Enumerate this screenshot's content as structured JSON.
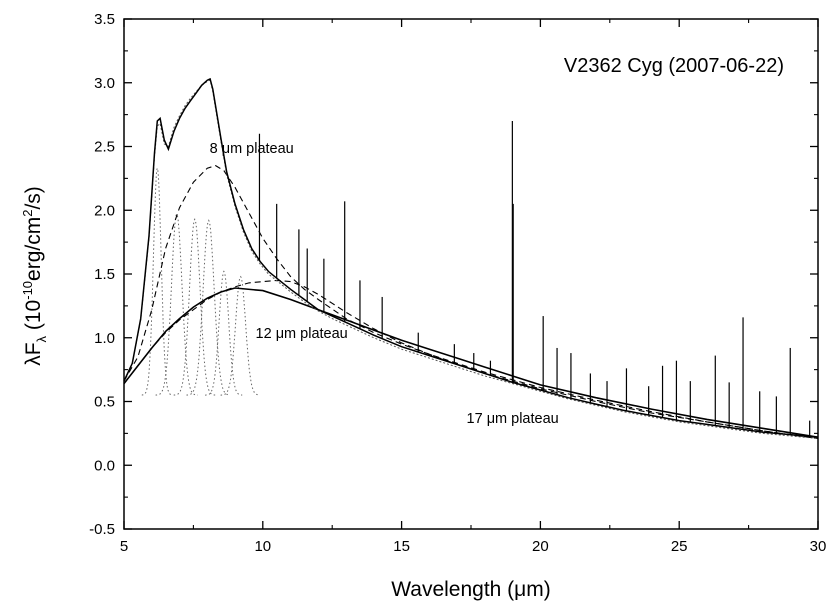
{
  "chart_data": {
    "type": "line",
    "title": "V2362 Cyg (2007-06-22)",
    "xlabel": "Wavelength (μm)",
    "ylabel_main": "λF",
    "ylabel_sub": "λ",
    "ylabel_unit_open": " (10",
    "ylabel_unit_exp": "-10",
    "ylabel_unit_mid": "erg/cm",
    "ylabel_unit_exp2": "2",
    "ylabel_unit_close": "/s)",
    "xlim": [
      5,
      30
    ],
    "ylim": [
      -0.5,
      3.5
    ],
    "xticks": [
      "5",
      "10",
      "15",
      "20",
      "25",
      "30"
    ],
    "yticks": [
      "-0.5",
      "0.0",
      "0.5",
      "1.0",
      "1.5",
      "2.0",
      "2.5",
      "3.0",
      "3.5"
    ],
    "annotations": [
      {
        "text": "8 μm plateau",
        "x": 9.6,
        "y": 2.45
      },
      {
        "text": "12 μm plateau",
        "x": 11.4,
        "y": 1.0
      },
      {
        "text": "17 μm plateau",
        "x": 19.0,
        "y": 0.33
      }
    ],
    "series": [
      {
        "style": "observed",
        "x": [
          5.0,
          5.3,
          5.6,
          5.9,
          6.1,
          6.2,
          6.3,
          6.45,
          6.6,
          6.8,
          7.0,
          7.2,
          7.4,
          7.6,
          7.8,
          8.0,
          8.1,
          8.2,
          8.35,
          8.5,
          8.7,
          9.0,
          9.3,
          9.6,
          9.9,
          10.2,
          10.6,
          11.0,
          11.5,
          12.0,
          12.5,
          13.0,
          13.5,
          14.0,
          15.0,
          16.0,
          17.0,
          18.0,
          19.0,
          20.0,
          21.0,
          22.0,
          23.0,
          24.0,
          25.0,
          26.0,
          27.0,
          28.0,
          29.0,
          30.0
        ],
        "y": [
          0.66,
          0.8,
          1.15,
          1.8,
          2.45,
          2.7,
          2.72,
          2.55,
          2.48,
          2.62,
          2.72,
          2.8,
          2.86,
          2.92,
          2.98,
          3.02,
          3.03,
          2.95,
          2.75,
          2.55,
          2.3,
          2.05,
          1.85,
          1.7,
          1.6,
          1.52,
          1.45,
          1.38,
          1.3,
          1.22,
          1.17,
          1.12,
          1.07,
          1.02,
          0.93,
          0.86,
          0.79,
          0.72,
          0.65,
          0.59,
          0.53,
          0.48,
          0.43,
          0.39,
          0.35,
          0.32,
          0.29,
          0.26,
          0.24,
          0.22
        ]
      },
      {
        "style": "model",
        "x": [
          5.0,
          5.3,
          5.6,
          5.9,
          6.1,
          6.2,
          6.3,
          6.45,
          6.6,
          6.8,
          7.0,
          7.2,
          7.4,
          7.6,
          7.8,
          8.0,
          8.1,
          8.2,
          8.35,
          8.5,
          8.7,
          9.0,
          9.3,
          9.6,
          9.9,
          10.2,
          10.6,
          11.0,
          11.5,
          12.0,
          12.5,
          13.0,
          13.5,
          14.0,
          15.0,
          16.0,
          17.0,
          18.0,
          19.0,
          20.0,
          21.0,
          22.0,
          23.0,
          24.0,
          25.0,
          26.0,
          27.0,
          28.0,
          29.0,
          30.0
        ],
        "y": [
          0.65,
          0.8,
          1.14,
          1.78,
          2.42,
          2.66,
          2.68,
          2.52,
          2.5,
          2.65,
          2.74,
          2.82,
          2.88,
          2.93,
          2.98,
          3.01,
          3.02,
          2.93,
          2.73,
          2.53,
          2.28,
          2.03,
          1.83,
          1.68,
          1.58,
          1.5,
          1.43,
          1.36,
          1.28,
          1.21,
          1.15,
          1.1,
          1.05,
          1.0,
          0.91,
          0.84,
          0.77,
          0.7,
          0.64,
          0.58,
          0.52,
          0.47,
          0.42,
          0.38,
          0.34,
          0.31,
          0.28,
          0.25,
          0.23,
          0.21
        ]
      },
      {
        "style": "plateau-8",
        "x": [
          5.0,
          5.5,
          6.0,
          6.5,
          7.0,
          7.5,
          8.0,
          8.3,
          8.6,
          9.0,
          9.5,
          10.0,
          10.5,
          11.0,
          11.5,
          12.0,
          13.0,
          14.0,
          15.0,
          16.0,
          17.0,
          18.0,
          19.0,
          20.0,
          22.0,
          24.0,
          26.0,
          28.0,
          30.0
        ],
        "y": [
          0.66,
          0.85,
          1.22,
          1.7,
          2.02,
          2.22,
          2.33,
          2.35,
          2.31,
          2.18,
          1.98,
          1.78,
          1.62,
          1.48,
          1.38,
          1.3,
          1.15,
          1.04,
          0.95,
          0.87,
          0.8,
          0.73,
          0.67,
          0.61,
          0.51,
          0.42,
          0.34,
          0.27,
          0.21
        ]
      },
      {
        "style": "plateau-12",
        "x": [
          5.0,
          5.5,
          6.0,
          6.5,
          7.0,
          7.5,
          8.0,
          8.5,
          9.0,
          9.5,
          10.0,
          10.5,
          11.0,
          11.5,
          12.0,
          12.5,
          13.0,
          14.0,
          15.0,
          16.0,
          17.0,
          18.0,
          19.0,
          20.0,
          22.0,
          24.0,
          26.0,
          28.0,
          30.0
        ],
        "y": [
          0.64,
          0.78,
          0.92,
          1.04,
          1.14,
          1.22,
          1.3,
          1.36,
          1.4,
          1.43,
          1.44,
          1.45,
          1.44,
          1.4,
          1.34,
          1.27,
          1.2,
          1.07,
          0.96,
          0.87,
          0.79,
          0.72,
          0.66,
          0.6,
          0.5,
          0.41,
          0.34,
          0.27,
          0.21
        ]
      },
      {
        "style": "plateau-17",
        "x": [
          5.0,
          5.5,
          6.0,
          6.5,
          7.0,
          7.5,
          8.0,
          8.5,
          9.0,
          10.0,
          11.0,
          12.0,
          13.0,
          14.0,
          15.0,
          16.0,
          17.0,
          18.0,
          19.0,
          20.0,
          22.0,
          24.0,
          26.0,
          28.0,
          30.0
        ],
        "y": [
          0.64,
          0.78,
          0.92,
          1.05,
          1.15,
          1.24,
          1.31,
          1.36,
          1.39,
          1.37,
          1.3,
          1.22,
          1.14,
          1.06,
          0.98,
          0.91,
          0.84,
          0.77,
          0.7,
          0.63,
          0.53,
          0.44,
          0.36,
          0.29,
          0.22
        ]
      },
      {
        "style": "gaussian-components",
        "components": [
          {
            "center": 6.2,
            "sigma": 0.14,
            "peak": 2.33
          },
          {
            "center": 6.9,
            "sigma": 0.19,
            "peak": 1.97
          },
          {
            "center": 7.55,
            "sigma": 0.19,
            "peak": 1.93
          },
          {
            "center": 8.05,
            "sigma": 0.2,
            "peak": 1.92
          },
          {
            "center": 8.6,
            "sigma": 0.17,
            "peak": 1.52
          },
          {
            "center": 9.2,
            "sigma": 0.18,
            "peak": 1.48
          }
        ]
      },
      {
        "style": "emission-lines",
        "lines": [
          {
            "x": 9.88,
            "peak": 2.6
          },
          {
            "x": 10.5,
            "peak": 2.05
          },
          {
            "x": 11.3,
            "peak": 1.85
          },
          {
            "x": 11.6,
            "peak": 1.7
          },
          {
            "x": 12.2,
            "peak": 1.62
          },
          {
            "x": 12.95,
            "peak": 2.07
          },
          {
            "x": 13.5,
            "peak": 1.45
          },
          {
            "x": 14.3,
            "peak": 1.32
          },
          {
            "x": 15.6,
            "peak": 1.04
          },
          {
            "x": 16.9,
            "peak": 0.95
          },
          {
            "x": 17.6,
            "peak": 0.88
          },
          {
            "x": 18.2,
            "peak": 0.82
          },
          {
            "x": 18.99,
            "peak": 2.7
          },
          {
            "x": 19.02,
            "peak": 2.05
          },
          {
            "x": 20.1,
            "peak": 1.17
          },
          {
            "x": 20.6,
            "peak": 0.92
          },
          {
            "x": 21.1,
            "peak": 0.88
          },
          {
            "x": 21.8,
            "peak": 0.72
          },
          {
            "x": 22.4,
            "peak": 0.66
          },
          {
            "x": 23.1,
            "peak": 0.76
          },
          {
            "x": 23.9,
            "peak": 0.62
          },
          {
            "x": 24.4,
            "peak": 0.78
          },
          {
            "x": 24.9,
            "peak": 0.82
          },
          {
            "x": 25.4,
            "peak": 0.66
          },
          {
            "x": 26.3,
            "peak": 0.86
          },
          {
            "x": 26.8,
            "peak": 0.65
          },
          {
            "x": 27.3,
            "peak": 1.16
          },
          {
            "x": 27.9,
            "peak": 0.58
          },
          {
            "x": 28.5,
            "peak": 0.54
          },
          {
            "x": 29.0,
            "peak": 0.92
          },
          {
            "x": 29.7,
            "peak": 0.35
          }
        ]
      }
    ]
  }
}
